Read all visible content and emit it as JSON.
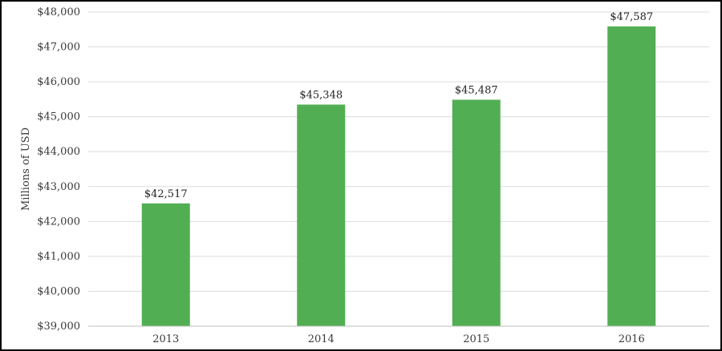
{
  "chart_data": {
    "type": "bar",
    "title": "",
    "xlabel": "",
    "ylabel": "Millions of USD",
    "categories": [
      "2013",
      "2014",
      "2015",
      "2016"
    ],
    "values": [
      42517,
      45348,
      45487,
      47587
    ],
    "data_labels": [
      "$42,517",
      "$45,348",
      "$45,487",
      "$47,587"
    ],
    "ylim": [
      39000,
      48000
    ],
    "y_ticks": [
      39000,
      40000,
      41000,
      42000,
      43000,
      44000,
      45000,
      46000,
      47000,
      48000
    ],
    "y_tick_labels": [
      "$39,000",
      "$40,000",
      "$41,000",
      "$42,000",
      "$43,000",
      "$44,000",
      "$45,000",
      "$46,000",
      "$47,000",
      "$48,000"
    ],
    "grid": true,
    "legend": "none",
    "colors": {
      "bar": "#52ae53",
      "grid": "#dcdcdc",
      "axis": "#bfbfbf"
    }
  }
}
